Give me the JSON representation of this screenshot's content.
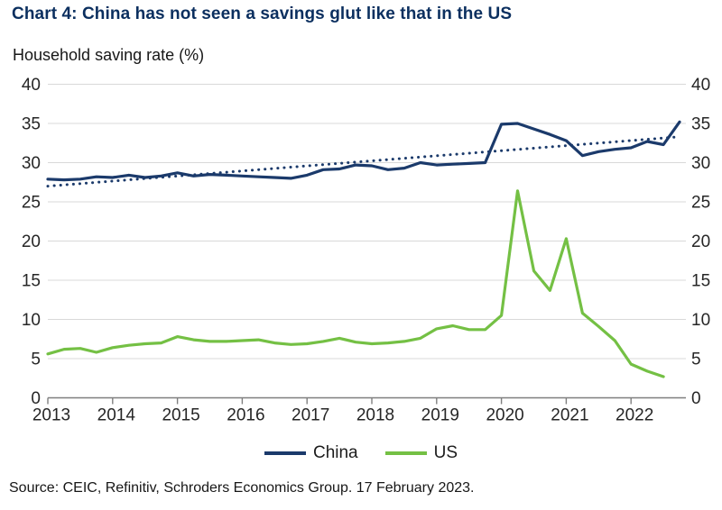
{
  "title": "Chart 4: China has not seen a savings glut like that in the US",
  "subtitle": "Household saving rate (%)",
  "source": "Source: CEIC, Refinitiv, Schroders Economics Group. 17 February 2023.",
  "legend": [
    {
      "label": "China",
      "color": "#1b3a6b"
    },
    {
      "label": "US",
      "color": "#74c044"
    }
  ],
  "colors": {
    "title_navy": "#0b2f5f",
    "china_line": "#1b3a6b",
    "us_line": "#74c044",
    "gridline": "#d9d9d9",
    "axis": "#7f7f7f",
    "tick_text": "#262626"
  },
  "chart_data": {
    "type": "line",
    "title": "Chart 4: China has not seen a savings glut like that in the US",
    "subtitle": "Household saving rate (%)",
    "frequency": "quarterly",
    "x_year_ticks": [
      "2013",
      "2014",
      "2015",
      "2016",
      "2017",
      "2018",
      "2019",
      "2020",
      "2021",
      "2022"
    ],
    "ylim": [
      0,
      40
    ],
    "y_ticks": [
      0,
      5,
      10,
      15,
      20,
      25,
      30,
      35,
      40
    ],
    "y_axis_sides": "both",
    "grid": true,
    "legend_position": "bottom",
    "series": [
      {
        "name": "China",
        "style": "solid",
        "color": "#1b3a6b",
        "start": "2013Q1",
        "values": [
          27.9,
          27.8,
          27.9,
          28.2,
          28.1,
          28.4,
          28.1,
          28.3,
          28.7,
          28.3,
          28.5,
          28.4,
          28.3,
          28.2,
          28.1,
          28.0,
          28.4,
          29.1,
          29.2,
          29.7,
          29.6,
          29.1,
          29.3,
          30.0,
          29.7,
          29.8,
          29.9,
          30.0,
          34.9,
          35.0,
          34.3,
          33.6,
          32.8,
          30.9,
          31.4,
          31.7,
          31.9,
          32.7,
          32.3,
          35.2
        ]
      },
      {
        "name": "US",
        "style": "solid",
        "color": "#74c044",
        "start": "2013Q1",
        "values": [
          5.6,
          6.2,
          6.3,
          5.8,
          6.4,
          6.7,
          6.9,
          7.0,
          7.8,
          7.4,
          7.2,
          7.2,
          7.3,
          7.4,
          7.0,
          6.8,
          6.9,
          7.2,
          7.6,
          7.1,
          6.9,
          7.0,
          7.2,
          7.6,
          8.8,
          9.2,
          8.7,
          8.7,
          10.5,
          26.4,
          16.2,
          13.7,
          20.3,
          10.8,
          9.1,
          7.3,
          4.3,
          3.4,
          2.7
        ]
      },
      {
        "name": "China trend",
        "style": "dotted",
        "color": "#1b3a6b",
        "trend": true,
        "endpoints": [
          27.0,
          33.3
        ]
      }
    ]
  }
}
